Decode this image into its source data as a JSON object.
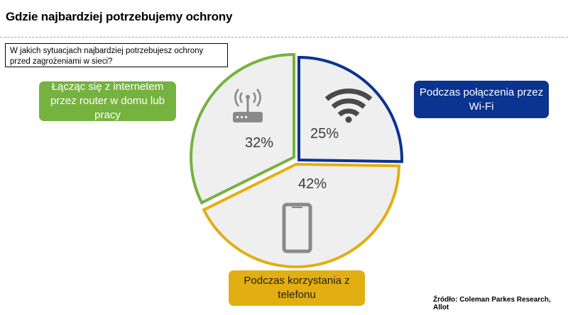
{
  "header": {
    "title": "Gdzie najbardziej potrzebujemy ochrony",
    "question": "W jakich sytuacjach najbardziej potrzebujesz ochrony przed zagrożeniami w sieci?"
  },
  "chart_data": {
    "type": "pie",
    "title": "",
    "slices": [
      {
        "label": "Łącząc się z internetem przez router w domu lub pracy",
        "value": 32,
        "value_label": "32%",
        "color": "#76b23f",
        "icon": "router-icon"
      },
      {
        "label": "Podczas połączenia przez Wi-Fi",
        "value": 25,
        "value_label": "25%",
        "color": "#0b3390",
        "icon": "wifi-icon"
      },
      {
        "label": "Podczas korzystania z telefonu",
        "value": 42,
        "value_label": "42%",
        "color": "#e3ae12",
        "icon": "smartphone-icon"
      }
    ],
    "slice_fill": "#efefef"
  },
  "source": "Źródło:  Coleman Parkes Research, Allot"
}
